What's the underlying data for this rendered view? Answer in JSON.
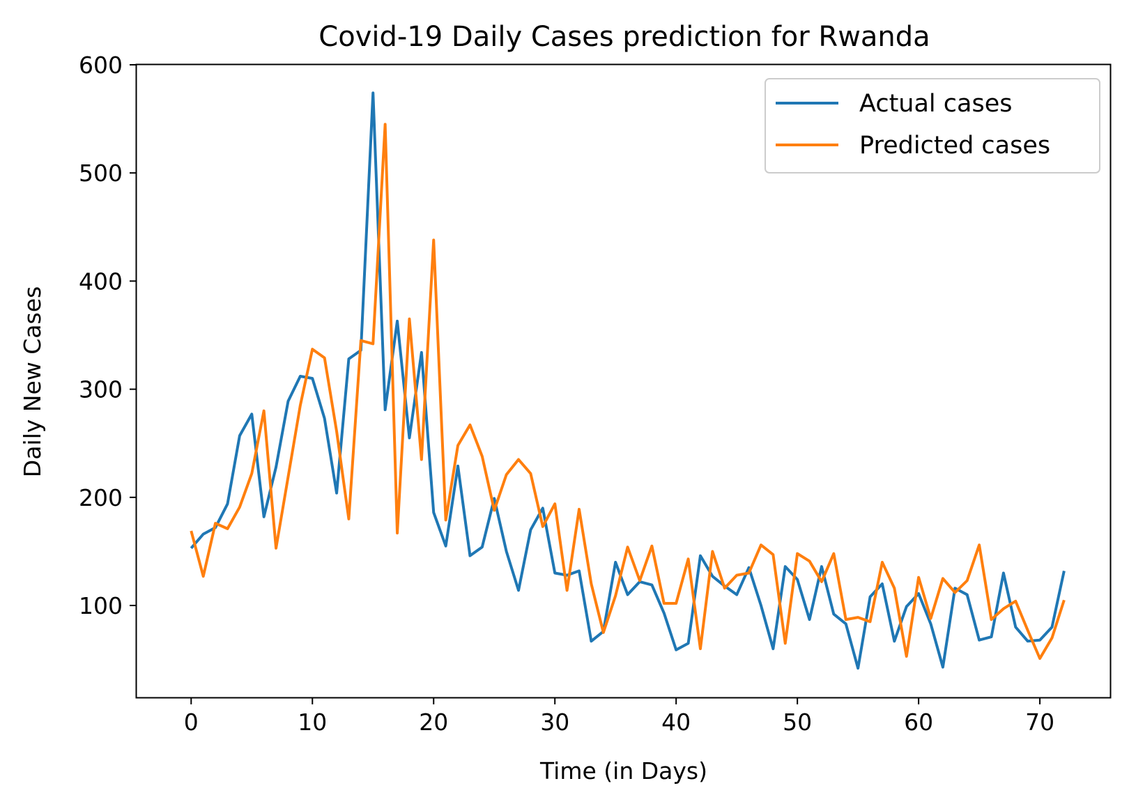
{
  "chart_data": {
    "type": "line",
    "title": "Covid-19 Daily Cases prediction for Rwanda",
    "xlabel": "Time (in Days)",
    "ylabel": "Daily New Cases",
    "xlim": [
      -4.5,
      75.8
    ],
    "ylim": [
      15,
      600
    ],
    "xticks": [
      0,
      10,
      20,
      30,
      40,
      50,
      60,
      70
    ],
    "yticks": [
      100,
      200,
      300,
      400,
      500,
      600
    ],
    "grid": false,
    "legend_position": "top-right",
    "x": [
      0,
      1,
      2,
      3,
      4,
      5,
      6,
      7,
      8,
      9,
      10,
      11,
      12,
      13,
      14,
      15,
      16,
      17,
      18,
      19,
      20,
      21,
      22,
      23,
      24,
      25,
      26,
      27,
      28,
      29,
      30,
      31,
      32,
      33,
      34,
      35,
      36,
      37,
      38,
      39,
      40,
      41,
      42,
      43,
      44,
      45,
      46,
      47,
      48,
      49,
      50,
      51,
      52,
      53,
      54,
      55,
      56,
      57,
      58,
      59,
      60,
      61,
      62,
      63,
      64,
      65,
      66,
      67,
      68,
      69,
      70,
      71,
      72
    ],
    "series": [
      {
        "name": "Actual cases",
        "color": "#1f77b4",
        "values": [
          153,
          166,
          172,
          194,
          257,
          277,
          182,
          228,
          289,
          312,
          310,
          273,
          204,
          328,
          336,
          574,
          281,
          363,
          255,
          334,
          186,
          155,
          229,
          146,
          154,
          199,
          150,
          114,
          170,
          190,
          130,
          128,
          132,
          67,
          76,
          140,
          110,
          122,
          119,
          93,
          59,
          65,
          146,
          127,
          118,
          110,
          135,
          100,
          60,
          136,
          124,
          87,
          136,
          92,
          83,
          42,
          108,
          120,
          67,
          99,
          111,
          83,
          43,
          116,
          110,
          68,
          71,
          130,
          80,
          67,
          68,
          80,
          132
        ]
      },
      {
        "name": "Predicted cases",
        "color": "#ff7f0e",
        "values": [
          169,
          127,
          176,
          171,
          191,
          222,
          280,
          153,
          219,
          285,
          337,
          329,
          261,
          180,
          345,
          342,
          545,
          167,
          365,
          235,
          438,
          179,
          248,
          267,
          238,
          188,
          221,
          235,
          222,
          173,
          194,
          114,
          189,
          120,
          75,
          109,
          154,
          123,
          155,
          102,
          102,
          143,
          60,
          150,
          116,
          128,
          130,
          156,
          147,
          65,
          148,
          141,
          122,
          148,
          87,
          89,
          85,
          140,
          116,
          53,
          126,
          88,
          125,
          112,
          123,
          156,
          87,
          97,
          104,
          77,
          51,
          70,
          105
        ]
      }
    ]
  }
}
